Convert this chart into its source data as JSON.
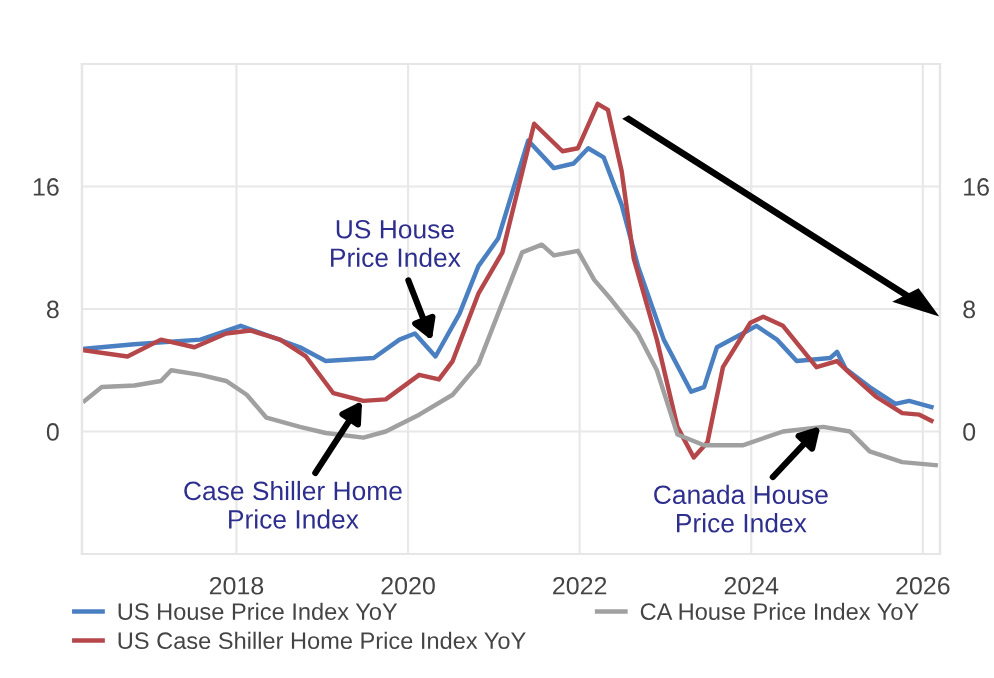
{
  "chart_data": {
    "type": "line",
    "xlim": [
      2016.2,
      2026.2
    ],
    "xticks": [
      2018,
      2020,
      2022,
      2024,
      2026
    ],
    "ylim": [
      -8,
      24
    ],
    "yticks": [
      0,
      8,
      16
    ],
    "y2lim": [
      -8,
      24
    ],
    "y2ticks": [
      0,
      8,
      16
    ],
    "grid": true,
    "legend": "bottom",
    "marker": "none",
    "line_style": "solid",
    "series": [
      {
        "name": "US House Price Index YoY",
        "color": "#4a7fc1",
        "x": [
          2016.23,
          2016.81,
          2017.58,
          2018.05,
          2018.35,
          2018.74,
          2019.04,
          2019.6,
          2019.9,
          2020.08,
          2020.32,
          2020.6,
          2020.82,
          2021.05,
          2021.4,
          2021.7,
          2021.93,
          2022.1,
          2022.28,
          2022.49,
          2022.68,
          2022.98,
          2023.3,
          2023.45,
          2023.6,
          2023.9,
          2024.06,
          2024.3,
          2024.53,
          2024.92,
          2025.0,
          2025.1,
          2025.38,
          2025.68,
          2025.84,
          2026.1
        ],
        "values": [
          5.4,
          5.7,
          6.0,
          6.9,
          6.3,
          5.5,
          4.6,
          4.8,
          6.0,
          6.4,
          4.9,
          7.7,
          10.8,
          12.6,
          19.0,
          17.2,
          17.5,
          18.5,
          17.9,
          14.8,
          10.8,
          6.0,
          2.6,
          2.9,
          5.5,
          6.4,
          6.9,
          6.0,
          4.6,
          4.8,
          5.2,
          4.1,
          2.9,
          1.8,
          2.0,
          1.6
        ]
      },
      {
        "name": "US Case Shiller Home Price Index YoY",
        "color": "#b5474b",
        "x": [
          2016.23,
          2016.73,
          2017.12,
          2017.51,
          2017.88,
          2018.16,
          2018.51,
          2018.81,
          2019.13,
          2019.48,
          2019.74,
          2020.13,
          2020.36,
          2020.52,
          2020.82,
          2021.1,
          2021.47,
          2021.8,
          2021.98,
          2022.21,
          2022.33,
          2022.49,
          2022.63,
          2022.9,
          2023.14,
          2023.33,
          2023.49,
          2023.67,
          2023.99,
          2024.14,
          2024.37,
          2024.76,
          2025.0,
          2025.15,
          2025.45,
          2025.76,
          2025.96,
          2026.1
        ],
        "values": [
          5.3,
          4.9,
          6.0,
          5.5,
          6.4,
          6.6,
          6.0,
          4.9,
          2.5,
          2.0,
          2.1,
          3.7,
          3.4,
          4.6,
          9.0,
          11.7,
          20.1,
          18.3,
          18.5,
          21.4,
          21.0,
          17.0,
          11.3,
          6.0,
          0.3,
          -1.7,
          -0.7,
          4.2,
          7.1,
          7.5,
          6.9,
          4.2,
          4.6,
          3.8,
          2.3,
          1.2,
          1.1,
          0.7
        ]
      },
      {
        "name": "CA House Price Index YoY",
        "color": "#a0a0a0",
        "x": [
          2016.23,
          2016.43,
          2016.81,
          2017.12,
          2017.24,
          2017.58,
          2017.88,
          2018.12,
          2018.35,
          2018.74,
          2019.04,
          2019.48,
          2019.74,
          2020.13,
          2020.52,
          2020.82,
          2021.05,
          2021.33,
          2021.56,
          2021.7,
          2021.98,
          2022.17,
          2022.37,
          2022.68,
          2022.9,
          2023.14,
          2023.45,
          2023.9,
          2024.37,
          2024.84,
          2025.15,
          2025.38,
          2025.76,
          2026.15
        ],
        "values": [
          2.0,
          2.9,
          3.0,
          3.3,
          4.0,
          3.7,
          3.3,
          2.4,
          0.9,
          0.3,
          -0.1,
          -0.4,
          0.0,
          1.1,
          2.4,
          4.4,
          7.7,
          11.7,
          12.2,
          11.5,
          11.8,
          9.9,
          8.6,
          6.4,
          4.0,
          -0.2,
          -0.9,
          -0.9,
          0.0,
          0.3,
          0.0,
          -1.3,
          -2.0,
          -2.2
        ]
      }
    ],
    "annotations": [
      {
        "text": "US House\nPrice Index",
        "x": 2020.3,
        "y": 5.6
      },
      {
        "text": "Case Shiller Home\nPrice Index",
        "x": 2019.5,
        "y": 2.3
      },
      {
        "text": "Canada House\nPrice Index",
        "x": 2024.85,
        "y": 0.6
      }
    ]
  }
}
